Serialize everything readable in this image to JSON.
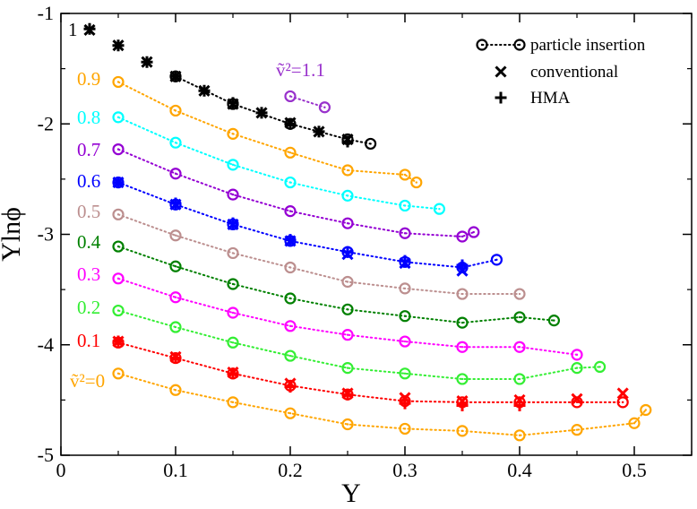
{
  "chart_data": {
    "type": "scatter",
    "title": "",
    "xlabel": "Y",
    "ylabel": "Ylnϕ",
    "xlim": [
      0,
      0.55
    ],
    "ylim": [
      -5,
      -1
    ],
    "xticks": [
      {
        "value": 0,
        "label": "0"
      },
      {
        "value": 0.1,
        "label": "0.1"
      },
      {
        "value": 0.2,
        "label": "0.2"
      },
      {
        "value": 0.3,
        "label": "0.3"
      },
      {
        "value": 0.4,
        "label": "0.4"
      },
      {
        "value": 0.5,
        "label": "0.5"
      }
    ],
    "yticks": [
      {
        "value": -1,
        "label": "-1"
      },
      {
        "value": -2,
        "label": "-2"
      },
      {
        "value": -3,
        "label": "-3"
      },
      {
        "value": -4,
        "label": "-4"
      },
      {
        "value": -5,
        "label": "-5"
      }
    ],
    "grid": false,
    "legend": {
      "placement": "top-right",
      "entries": [
        {
          "label": "particle insertion",
          "marker": "circle-dot-line"
        },
        {
          "label": "conventional",
          "marker": "x"
        },
        {
          "label": "HMA",
          "marker": "plus"
        }
      ]
    },
    "series": [
      {
        "label": "ṽ²=0",
        "color": "#ffa500",
        "x": [
          0.05,
          0.1,
          0.15,
          0.2,
          0.25,
          0.3,
          0.35,
          0.4,
          0.45,
          0.5,
          0.51
        ],
        "y": [
          -4.26,
          -4.41,
          -4.52,
          -4.62,
          -4.72,
          -4.76,
          -4.78,
          -4.82,
          -4.77,
          -4.71,
          -4.59
        ]
      },
      {
        "label": "0.1",
        "color": "#ff0000",
        "x": [
          0.05,
          0.1,
          0.15,
          0.2,
          0.25,
          0.3,
          0.35,
          0.4,
          0.45,
          0.49
        ],
        "y": [
          -3.98,
          -4.12,
          -4.26,
          -4.37,
          -4.45,
          -4.51,
          -4.52,
          -4.52,
          -4.52,
          -4.52
        ],
        "conventional_x": [
          0.05,
          0.1,
          0.15,
          0.2,
          0.25,
          0.3,
          0.35,
          0.4,
          0.45,
          0.49
        ],
        "conventional_y": [
          -3.97,
          -4.11,
          -4.25,
          -4.35,
          -4.44,
          -4.48,
          -4.51,
          -4.5,
          -4.49,
          -4.44
        ],
        "hma_x": [
          0.05,
          0.1,
          0.15,
          0.2,
          0.25,
          0.3,
          0.35,
          0.4
        ],
        "hma_y": [
          -3.97,
          -4.12,
          -4.26,
          -4.38,
          -4.45,
          -4.53,
          -4.55,
          -4.55
        ]
      },
      {
        "label": "0.2",
        "color": "#33ee33",
        "x": [
          0.05,
          0.1,
          0.15,
          0.2,
          0.25,
          0.3,
          0.35,
          0.4,
          0.45,
          0.47
        ],
        "y": [
          -3.69,
          -3.84,
          -3.98,
          -4.1,
          -4.21,
          -4.26,
          -4.31,
          -4.31,
          -4.21,
          -4.2
        ]
      },
      {
        "label": "0.3",
        "color": "#ff00ff",
        "x": [
          0.05,
          0.1,
          0.15,
          0.2,
          0.25,
          0.3,
          0.35,
          0.4,
          0.45
        ],
        "y": [
          -3.4,
          -3.57,
          -3.71,
          -3.83,
          -3.91,
          -3.97,
          -4.02,
          -4.02,
          -4.09
        ]
      },
      {
        "label": "0.4",
        "color": "#008000",
        "x": [
          0.05,
          0.1,
          0.15,
          0.2,
          0.25,
          0.3,
          0.35,
          0.4,
          0.43
        ],
        "y": [
          -3.11,
          -3.29,
          -3.45,
          -3.58,
          -3.68,
          -3.74,
          -3.8,
          -3.75,
          -3.78
        ]
      },
      {
        "label": "0.5",
        "color": "#bc8f8f",
        "x": [
          0.05,
          0.1,
          0.15,
          0.2,
          0.25,
          0.3,
          0.35,
          0.4
        ],
        "y": [
          -2.82,
          -3.01,
          -3.17,
          -3.3,
          -3.43,
          -3.49,
          -3.54,
          -3.54
        ]
      },
      {
        "label": "0.6",
        "color": "#0000ff",
        "x": [
          0.05,
          0.1,
          0.15,
          0.2,
          0.25,
          0.3,
          0.35,
          0.38
        ],
        "y": [
          -2.53,
          -2.73,
          -2.91,
          -3.06,
          -3.16,
          -3.25,
          -3.3,
          -3.23
        ],
        "conventional_x": [
          0.05,
          0.1,
          0.15,
          0.2,
          0.25,
          0.3,
          0.35
        ],
        "conventional_y": [
          -2.53,
          -2.73,
          -2.91,
          -3.06,
          -3.18,
          -3.26,
          -3.33
        ],
        "hma_x": [
          0.05,
          0.1,
          0.15,
          0.2,
          0.25,
          0.3,
          0.35
        ],
        "hma_y": [
          -2.53,
          -2.72,
          -2.9,
          -3.05,
          -3.16,
          -3.24,
          -3.28
        ]
      },
      {
        "label": "0.7",
        "color": "#9400d3",
        "x": [
          0.05,
          0.1,
          0.15,
          0.2,
          0.25,
          0.3,
          0.35,
          0.36
        ],
        "y": [
          -2.23,
          -2.45,
          -2.64,
          -2.79,
          -2.9,
          -2.99,
          -3.02,
          -2.98
        ]
      },
      {
        "label": "0.8",
        "color": "#00ffff",
        "x": [
          0.05,
          0.1,
          0.15,
          0.2,
          0.25,
          0.3,
          0.33
        ],
        "y": [
          -1.94,
          -2.17,
          -2.37,
          -2.53,
          -2.65,
          -2.74,
          -2.77
        ]
      },
      {
        "label": "0.9",
        "color": "#ffa500",
        "x": [
          0.05,
          0.1,
          0.15,
          0.2,
          0.25,
          0.3,
          0.31
        ],
        "y": [
          -1.62,
          -1.88,
          -2.09,
          -2.26,
          -2.42,
          -2.46,
          -2.53
        ]
      },
      {
        "label": "1",
        "color": "#000000",
        "x": [
          0.1,
          0.15,
          0.2,
          0.25,
          0.27
        ],
        "y": [
          -1.57,
          -1.82,
          -2.0,
          -2.14,
          -2.18
        ],
        "conventional_x": [
          0.025,
          0.05,
          0.075,
          0.1,
          0.125,
          0.15,
          0.175,
          0.2,
          0.225,
          0.25
        ],
        "conventional_y": [
          -1.15,
          -1.29,
          -1.44,
          -1.57,
          -1.7,
          -1.82,
          -1.9,
          -1.99,
          -2.07,
          -2.14
        ],
        "hma_x": [
          0.025,
          0.05,
          0.075,
          0.1,
          0.125,
          0.15,
          0.175,
          0.2,
          0.225,
          0.25
        ],
        "hma_y": [
          -1.14,
          -1.29,
          -1.44,
          -1.57,
          -1.7,
          -1.81,
          -1.9,
          -2.0,
          -2.07,
          -2.16
        ]
      },
      {
        "label": "ṽ²=1.1",
        "color": "#9932cc",
        "x": [
          0.2,
          0.23
        ],
        "y": [
          -1.75,
          -1.85
        ]
      }
    ]
  }
}
